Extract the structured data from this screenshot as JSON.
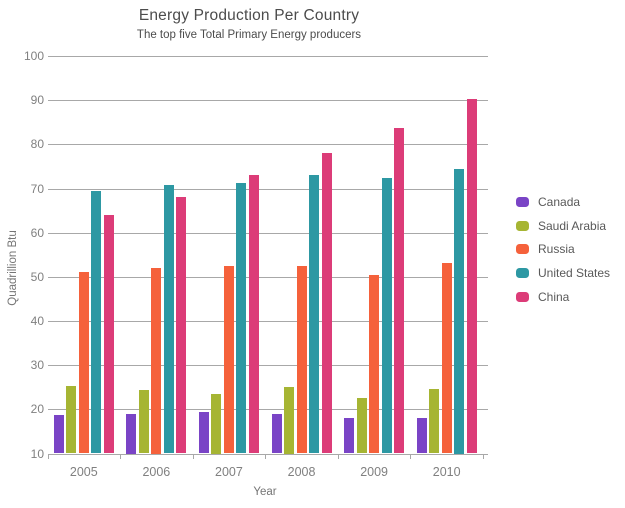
{
  "chart_data": {
    "type": "bar",
    "title": "Energy Production Per Country",
    "subtitle": "The top five Total Primary Energy producers",
    "xlabel": "Year",
    "ylabel": "Quadrillion Btu",
    "categories": [
      "2005",
      "2006",
      "2007",
      "2008",
      "2009",
      "2010"
    ],
    "series": [
      {
        "name": "Canada",
        "color": "#7a44c6",
        "values": [
          18.7,
          19.0,
          19.4,
          18.9,
          18.1,
          18.1
        ]
      },
      {
        "name": "Saudi Arabia",
        "color": "#a6b533",
        "values": [
          25.2,
          24.4,
          23.5,
          25.0,
          22.6,
          24.5
        ]
      },
      {
        "name": "Russia",
        "color": "#f5613b",
        "values": [
          51.0,
          52.0,
          52.4,
          52.5,
          50.4,
          53.1
        ]
      },
      {
        "name": "United States",
        "color": "#2d98a3",
        "values": [
          69.4,
          70.7,
          71.2,
          73.1,
          72.3,
          74.5
        ]
      },
      {
        "name": "China",
        "color": "#dc3c78",
        "values": [
          63.9,
          68.1,
          73.1,
          78.1,
          83.8,
          90.2
        ]
      }
    ],
    "ylim": [
      10,
      100
    ],
    "ytick_step": 10,
    "grid": true,
    "legend_position": "right"
  },
  "colors": {
    "grid": "#a8a8a8",
    "axis_text": "#808080",
    "title_text": "#4c4c4c",
    "legend_text": "#595959"
  }
}
